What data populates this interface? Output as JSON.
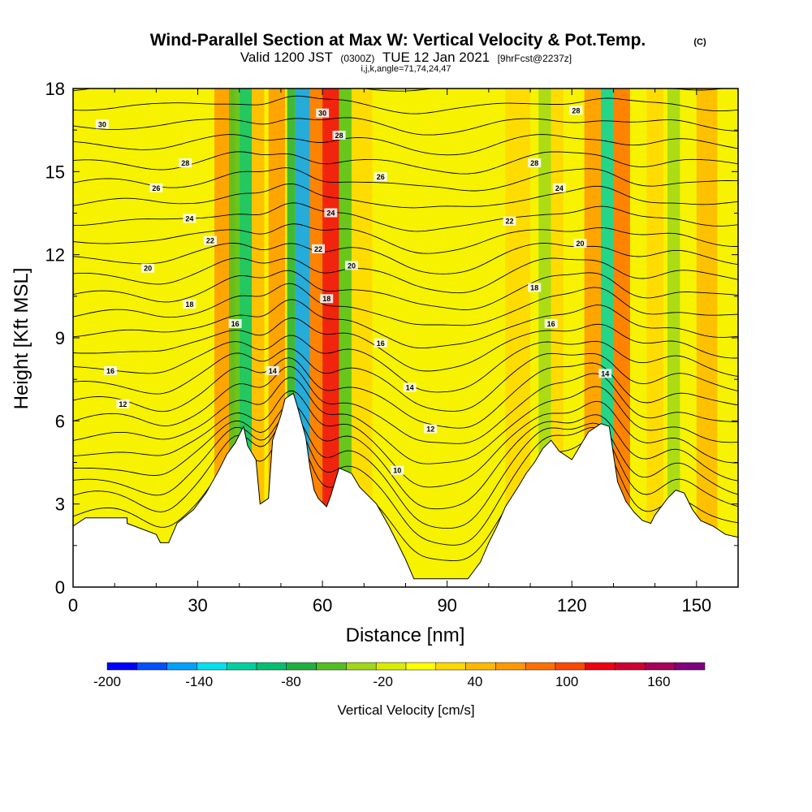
{
  "header": {
    "title": "Wind-Parallel Section at Max W: Vertical Velocity & Pot.Temp.",
    "copyright": "(C)",
    "valid_prefix": "Valid 1200 JST",
    "valid_utc": "(0300Z)",
    "valid_date": "TUE 12 Jan 2021",
    "forecast": "[9hrFcst@2237z]",
    "params": "i,j,k,angle=71,74,24,47"
  },
  "chart_data": {
    "type": "heatmap",
    "xlabel": "Distance [nm]",
    "ylabel": "Height [Kft MSL]",
    "xlim": [
      0,
      160
    ],
    "ylim": [
      0,
      18
    ],
    "x_ticks": [
      "0",
      "30",
      "60",
      "90",
      "120",
      "150"
    ],
    "x_tick_values": [
      0,
      30,
      60,
      90,
      120,
      150
    ],
    "y_ticks": [
      "0",
      "3",
      "6",
      "9",
      "12",
      "15",
      "18"
    ],
    "y_tick_values": [
      0,
      3,
      6,
      9,
      12,
      15,
      18
    ],
    "terrain_kft": [
      [
        0,
        2.2
      ],
      [
        3,
        2.5
      ],
      [
        10,
        2.5
      ],
      [
        13,
        2.5
      ],
      [
        13,
        2.5
      ],
      [
        13,
        2.3
      ],
      [
        20,
        1.9
      ],
      [
        21,
        1.6
      ],
      [
        23,
        1.6
      ],
      [
        25,
        2.3
      ],
      [
        29,
        2.8
      ],
      [
        32,
        3.4
      ],
      [
        35,
        4.2
      ],
      [
        37,
        4.8
      ],
      [
        39,
        5.2
      ],
      [
        41,
        5.8
      ],
      [
        42,
        5.1
      ],
      [
        44,
        4.6
      ],
      [
        45,
        3.0
      ],
      [
        47,
        3.2
      ],
      [
        48,
        5.3
      ],
      [
        50,
        6.2
      ],
      [
        51,
        6.8
      ],
      [
        53,
        7.0
      ],
      [
        54,
        6.5
      ],
      [
        56,
        5.4
      ],
      [
        57,
        4.3
      ],
      [
        58,
        3.5
      ],
      [
        59,
        3.2
      ],
      [
        61,
        2.9
      ],
      [
        62,
        3.3
      ],
      [
        64,
        4.3
      ],
      [
        67,
        4.1
      ],
      [
        69,
        3.6
      ],
      [
        73,
        3.0
      ],
      [
        76,
        2.2
      ],
      [
        78,
        1.6
      ],
      [
        80,
        1.0
      ],
      [
        82,
        0.3
      ],
      [
        90,
        0.3
      ],
      [
        95,
        0.3
      ],
      [
        98,
        0.9
      ],
      [
        100,
        1.6
      ],
      [
        102,
        2.2
      ],
      [
        104,
        2.9
      ],
      [
        107,
        3.6
      ],
      [
        109,
        4.1
      ],
      [
        111,
        4.5
      ],
      [
        113,
        5.0
      ],
      [
        115,
        5.3
      ],
      [
        117,
        4.9
      ],
      [
        120,
        4.6
      ],
      [
        122,
        5.1
      ],
      [
        124,
        5.6
      ],
      [
        127,
        5.9
      ],
      [
        129,
        5.8
      ],
      [
        131,
        3.8
      ],
      [
        133,
        3.1
      ],
      [
        135,
        2.7
      ],
      [
        137,
        2.4
      ],
      [
        139,
        2.3
      ],
      [
        140,
        2.6
      ],
      [
        143,
        3.2
      ],
      [
        145,
        3.5
      ],
      [
        147,
        3.4
      ],
      [
        149,
        2.8
      ],
      [
        151,
        2.4
      ],
      [
        154,
        2.2
      ],
      [
        157,
        1.9
      ],
      [
        160,
        1.8
      ]
    ],
    "vertical_velocity_bands": [
      {
        "x": [
          34,
          39
        ],
        "w": 60
      },
      {
        "x": [
          37.5,
          40
        ],
        "w": -60
      },
      {
        "x": [
          40,
          43
        ],
        "w": -100
      },
      {
        "x": [
          43,
          46
        ],
        "w": 40
      },
      {
        "x": [
          47,
          51
        ],
        "w": 60
      },
      {
        "x": [
          51.5,
          53.5
        ],
        "w": -80
      },
      {
        "x": [
          53.5,
          57
        ],
        "w": -160
      },
      {
        "x": [
          57,
          60
        ],
        "w": 80
      },
      {
        "x": [
          60,
          64
        ],
        "w": 120
      },
      {
        "x": [
          64,
          67
        ],
        "w": -60
      },
      {
        "x": [
          67,
          72
        ],
        "w": 20
      },
      {
        "x": [
          104,
          110
        ],
        "w": 20
      },
      {
        "x": [
          112,
          115
        ],
        "w": -40
      },
      {
        "x": [
          115,
          118
        ],
        "w": 20
      },
      {
        "x": [
          123,
          127
        ],
        "w": 60
      },
      {
        "x": [
          127,
          130
        ],
        "w": -120
      },
      {
        "x": [
          130,
          134
        ],
        "w": 80
      },
      {
        "x": [
          138,
          142
        ],
        "w": 20
      },
      {
        "x": [
          143,
          146
        ],
        "w": -40
      },
      {
        "x": [
          150,
          155
        ],
        "w": 40
      }
    ],
    "pot_temp_levels_c": [
      8,
      9,
      10,
      11,
      12,
      13,
      14,
      15,
      16,
      17,
      18,
      19,
      20,
      21,
      22,
      23,
      24,
      25,
      26,
      27,
      28,
      29,
      30,
      31,
      32
    ],
    "contour_labels": [
      {
        "text": "30",
        "x": 7,
        "y": 16.7
      },
      {
        "text": "28",
        "x": 27,
        "y": 15.3
      },
      {
        "text": "26",
        "x": 20,
        "y": 14.4
      },
      {
        "text": "24",
        "x": 28,
        "y": 13.3
      },
      {
        "text": "22",
        "x": 33,
        "y": 12.5
      },
      {
        "text": "20",
        "x": 18,
        "y": 11.5
      },
      {
        "text": "18",
        "x": 28,
        "y": 10.2
      },
      {
        "text": "16",
        "x": 39,
        "y": 9.5
      },
      {
        "text": "16",
        "x": 9,
        "y": 7.8
      },
      {
        "text": "12",
        "x": 12,
        "y": 6.6
      },
      {
        "text": "14",
        "x": 48,
        "y": 7.8
      },
      {
        "text": "30",
        "x": 60,
        "y": 17.1
      },
      {
        "text": "28",
        "x": 64,
        "y": 16.3
      },
      {
        "text": "26",
        "x": 74,
        "y": 14.8
      },
      {
        "text": "24",
        "x": 62,
        "y": 13.5
      },
      {
        "text": "22",
        "x": 59,
        "y": 12.2
      },
      {
        "text": "20",
        "x": 67,
        "y": 11.6
      },
      {
        "text": "18",
        "x": 61,
        "y": 10.4
      },
      {
        "text": "16",
        "x": 74,
        "y": 8.8
      },
      {
        "text": "14",
        "x": 81,
        "y": 7.2
      },
      {
        "text": "12",
        "x": 86,
        "y": 5.7
      },
      {
        "text": "10",
        "x": 78,
        "y": 4.2
      },
      {
        "text": "28",
        "x": 121,
        "y": 17.2
      },
      {
        "text": "28",
        "x": 111,
        "y": 15.3
      },
      {
        "text": "24",
        "x": 117,
        "y": 14.4
      },
      {
        "text": "22",
        "x": 105,
        "y": 13.2
      },
      {
        "text": "20",
        "x": 122,
        "y": 12.4
      },
      {
        "text": "18",
        "x": 111,
        "y": 10.8
      },
      {
        "text": "16",
        "x": 115,
        "y": 9.5
      },
      {
        "text": "14",
        "x": 128,
        "y": 7.7
      }
    ]
  },
  "colorbar": {
    "label": "Vertical Velocity [cm/s]",
    "tick_labels": [
      "-200",
      "-140",
      "-80",
      "-20",
      "40",
      "100",
      "160"
    ],
    "tick_values": [
      -200,
      -140,
      -80,
      -20,
      40,
      100,
      160
    ],
    "range": [
      -200,
      190
    ],
    "colors": [
      "#0000ff",
      "#0050ff",
      "#00a0ff",
      "#00e0f0",
      "#00d0a0",
      "#00c070",
      "#20b040",
      "#50c020",
      "#a0d818",
      "#d8ec00",
      "#ffff00",
      "#ffd800",
      "#ffb800",
      "#ff9800",
      "#ff7000",
      "#ff4800",
      "#f00010",
      "#d00030",
      "#a80058",
      "#800080"
    ]
  }
}
